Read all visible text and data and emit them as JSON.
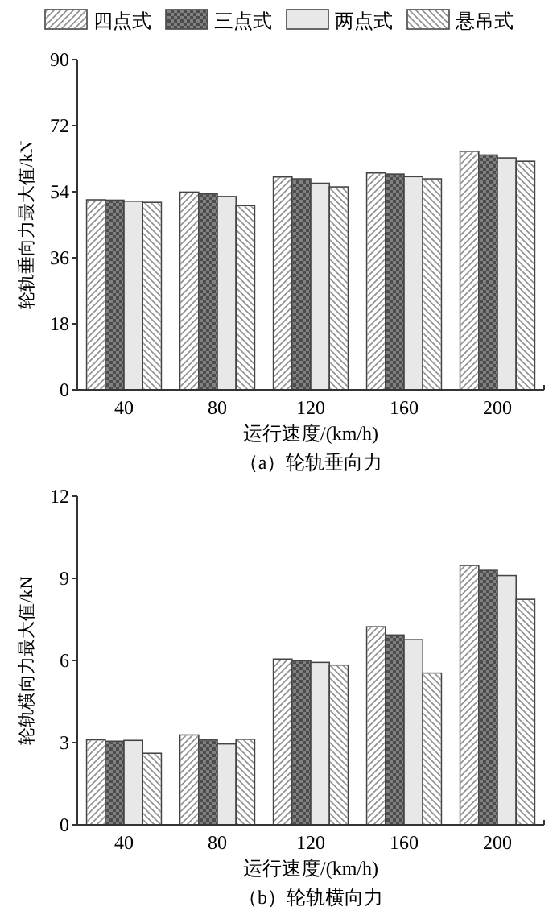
{
  "chart_data": [
    {
      "type": "bar",
      "title": "（a）轮轨垂向力",
      "xlabel": "运行速度/(km/h)",
      "ylabel": "轮轨垂向力最大值/kN",
      "categories": [
        "40",
        "80",
        "120",
        "160",
        "200"
      ],
      "ylim": [
        0,
        90
      ],
      "yticks": [
        0,
        18,
        36,
        54,
        72,
        90
      ],
      "legend": "top",
      "grid": false,
      "series": [
        {
          "name": "四点式",
          "color": "#ffffff",
          "values": [
            51.8,
            53.9,
            58.0,
            59.1,
            65.0
          ]
        },
        {
          "name": "三点式",
          "color": "#808080",
          "values": [
            51.7,
            53.4,
            57.5,
            58.8,
            64.0
          ]
        },
        {
          "name": "两点式",
          "color": "#e8e8e8",
          "values": [
            51.4,
            52.7,
            56.3,
            58.1,
            63.2
          ]
        },
        {
          "name": "悬吊式",
          "color": "#ffffff",
          "values": [
            51.1,
            50.2,
            55.3,
            57.5,
            62.3
          ]
        }
      ]
    },
    {
      "type": "bar",
      "title": "（b）轮轨横向力",
      "xlabel": "运行速度/(km/h)",
      "ylabel": "轮轨横向力最大值/kN",
      "categories": [
        "40",
        "80",
        "120",
        "160",
        "200"
      ],
      "ylim": [
        0,
        12
      ],
      "yticks": [
        0,
        3,
        6,
        9,
        12
      ],
      "legend": false,
      "grid": false,
      "series": [
        {
          "color": "#ffffff",
          "values": [
            3.1,
            3.28,
            6.05,
            7.23,
            9.47
          ]
        },
        {
          "color": "#808080",
          "values": [
            3.05,
            3.1,
            5.99,
            6.93,
            9.29
          ]
        },
        {
          "color": "#e8e8e8",
          "values": [
            3.08,
            2.95,
            5.93,
            6.76,
            9.1
          ]
        },
        {
          "color": "#ffffff",
          "values": [
            2.61,
            3.12,
            5.83,
            5.54,
            8.23
          ]
        }
      ]
    }
  ]
}
